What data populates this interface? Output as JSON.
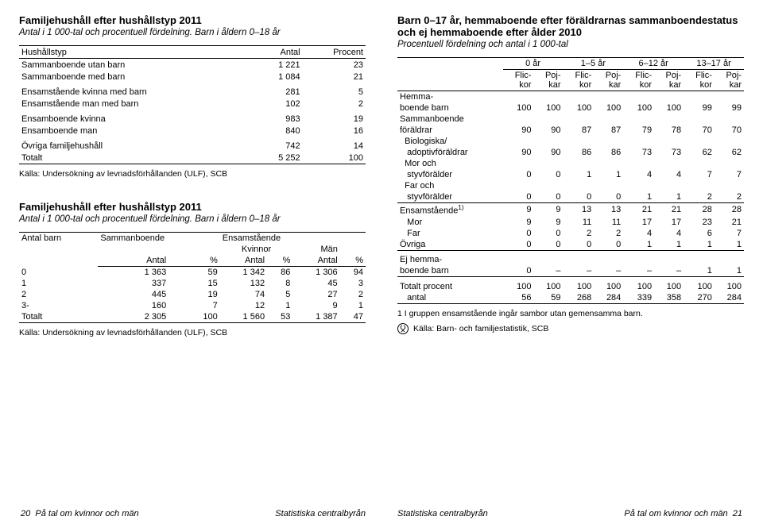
{
  "left": {
    "table1": {
      "title": "Familjehushåll efter hushållstyp 2011",
      "subtitle": "Antal i 1 000-tal och procentuell fördelning. Barn i åldern 0–18 år",
      "col1": "Hushållstyp",
      "col2": "Antal",
      "col3": "Procent",
      "rows": [
        {
          "label": "Sammanboende utan barn",
          "antal": "1 221",
          "procent": "23"
        },
        {
          "label": "Sammanboende med barn",
          "antal": "1 084",
          "procent": "21"
        },
        {
          "label": "Ensamstående kvinna med barn",
          "antal": "281",
          "procent": "5"
        },
        {
          "label": "Ensamstående man med barn",
          "antal": "102",
          "procent": "2"
        },
        {
          "label": "Ensamboende kvinna",
          "antal": "983",
          "procent": "19"
        },
        {
          "label": "Ensamboende man",
          "antal": "840",
          "procent": "16"
        },
        {
          "label": "Övriga familjehushåll",
          "antal": "742",
          "procent": "14"
        }
      ],
      "total": {
        "label": "Totalt",
        "antal": "5 252",
        "procent": "100"
      },
      "source": "Källa: Undersökning av levnadsförhållanden (ULF), SCB"
    },
    "table2": {
      "title": "Familjehushåll efter hushållstyp 2011",
      "subtitle": "Antal i 1 000-tal och procentuell fördelning. Barn i åldern 0–18 år",
      "h_antalbarn": "Antal barn",
      "h_samman": "Sammanboende",
      "h_ensam": "Ensamstående",
      "h_kvinnor": "Kvinnor",
      "h_man": "Män",
      "h_antal": "Antal",
      "h_pct": "%",
      "rows": [
        {
          "b": "0",
          "sa": "1 363",
          "sp": "59",
          "ka": "1 342",
          "kp": "86",
          "ma": "1 306",
          "mp": "94"
        },
        {
          "b": "1",
          "sa": "337",
          "sp": "15",
          "ka": "132",
          "kp": "8",
          "ma": "45",
          "mp": "3"
        },
        {
          "b": "2",
          "sa": "445",
          "sp": "19",
          "ka": "74",
          "kp": "5",
          "ma": "27",
          "mp": "2"
        },
        {
          "b": "3-",
          "sa": "160",
          "sp": "7",
          "ka": "12",
          "kp": "1",
          "ma": "9",
          "mp": "1"
        }
      ],
      "total": {
        "b": "Totalt",
        "sa": "2 305",
        "sp": "100",
        "ka": "1 560",
        "kp": "53",
        "ma": "1 387",
        "mp": "47"
      },
      "source": "Källa: Undersökning av levnadsförhållanden (ULF), SCB"
    }
  },
  "right": {
    "title": "Barn 0–17 år, hemmaboende efter föräldrarnas sammanboendestatus och ej hemmaboende efter ålder 2010",
    "subtitle": "Procentuell fördelning och antal i 1 000-tal",
    "ages": [
      "0 år",
      "1–5 år",
      "6–12 år",
      "13–17 år"
    ],
    "subh_f": "Flic-\nkor",
    "subh_p": "Poj-\nkar",
    "sections": {
      "hemma_title": "Hemma-",
      "hemma_sub": "boende barn",
      "hemma": [
        "100",
        "100",
        "100",
        "100",
        "100",
        "100",
        "99",
        "99"
      ],
      "samman_title": "Sammanboende",
      "samman_sub": "föräldrar",
      "samman": [
        "90",
        "90",
        "87",
        "87",
        "79",
        "78",
        "70",
        "70"
      ],
      "bio_title": "Biologiska/",
      "bio_sub": "adoptivföräldrar",
      "bio": [
        "90",
        "90",
        "86",
        "86",
        "73",
        "73",
        "62",
        "62"
      ],
      "mor_title": "Mor och",
      "mor_sub": "styvförälder",
      "mor": [
        "0",
        "0",
        "1",
        "1",
        "4",
        "4",
        "7",
        "7"
      ],
      "far_title": "Far och",
      "far_sub": "styvförälder",
      "far": [
        "0",
        "0",
        "0",
        "0",
        "1",
        "1",
        "2",
        "2"
      ],
      "ensam_label": "Ensamstående",
      "ensam_sup": "1)",
      "ensam": [
        "9",
        "9",
        "13",
        "13",
        "21",
        "21",
        "28",
        "28"
      ],
      "mor2_label": "Mor",
      "mor2": [
        "9",
        "9",
        "11",
        "11",
        "17",
        "17",
        "23",
        "21"
      ],
      "far2_label": "Far",
      "far2": [
        "0",
        "0",
        "2",
        "2",
        "4",
        "4",
        "6",
        "7"
      ],
      "ovriga_label": "Övriga",
      "ovriga": [
        "0",
        "0",
        "0",
        "0",
        "1",
        "1",
        "1",
        "1"
      ],
      "ej_title": "Ej hemma-",
      "ej_sub": "boende barn",
      "ej": [
        "0",
        "–",
        "–",
        "–",
        "–",
        "–",
        "1",
        "1"
      ],
      "tot_p_label": "Totalt procent",
      "tot_p": [
        "100",
        "100",
        "100",
        "100",
        "100",
        "100",
        "100",
        "100"
      ],
      "tot_a_label": "antal",
      "tot_a": [
        "56",
        "59",
        "268",
        "284",
        "339",
        "358",
        "270",
        "284"
      ]
    },
    "note": "1  I gruppen ensamstående ingår sambor utan gemensamma barn.",
    "source": "Källa: Barn- och familjestatistik, SCB"
  },
  "footer": {
    "l_page": "20",
    "l_text": "På tal om kvinnor och män",
    "center": "Statistiska centralbyrån",
    "r_text": "På tal om kvinnor och män",
    "r_page": "21"
  }
}
